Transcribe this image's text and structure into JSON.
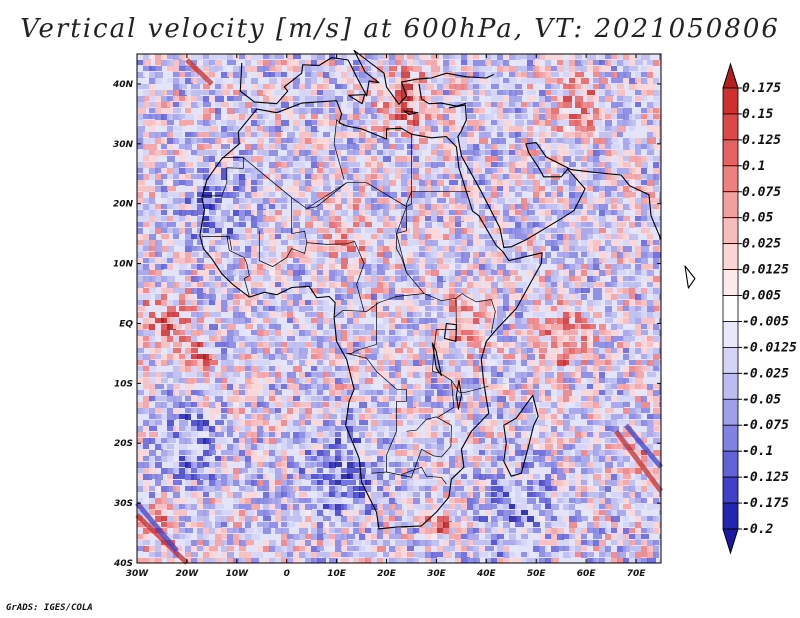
{
  "title": "Vertical velocity [m/s] at 600hPa, VT: 2021050806",
  "footer": "GrADS: IGES/COLA",
  "map": {
    "lon_range": [
      -30,
      75
    ],
    "lat_range": [
      -40,
      45
    ],
    "lon_ticks": [
      {
        "value": -30,
        "label": "30W"
      },
      {
        "value": -20,
        "label": "20W"
      },
      {
        "value": -10,
        "label": "10W"
      },
      {
        "value": 0,
        "label": "0"
      },
      {
        "value": 10,
        "label": "10E"
      },
      {
        "value": 20,
        "label": "20E"
      },
      {
        "value": 30,
        "label": "30E"
      },
      {
        "value": 40,
        "label": "40E"
      },
      {
        "value": 50,
        "label": "50E"
      },
      {
        "value": 60,
        "label": "60E"
      },
      {
        "value": 70,
        "label": "70E"
      }
    ],
    "lat_ticks": [
      {
        "value": 40,
        "label": "40N"
      },
      {
        "value": 30,
        "label": "30N"
      },
      {
        "value": 20,
        "label": "20N"
      },
      {
        "value": 10,
        "label": "10N"
      },
      {
        "value": 0,
        "label": "EQ"
      },
      {
        "value": -10,
        "label": "10S"
      },
      {
        "value": -20,
        "label": "20S"
      },
      {
        "value": -30,
        "label": "30S"
      },
      {
        "value": -40,
        "label": "40S"
      }
    ]
  },
  "colorbar": {
    "levels": [
      "0.175",
      "0.15",
      "0.125",
      "0.1",
      "0.075",
      "0.05",
      "0.025",
      "0.0125",
      "0.005",
      "-0.005",
      "-0.0125",
      "-0.025",
      "-0.05",
      "-0.075",
      "-0.1",
      "-0.125",
      "-0.175",
      "-0.2"
    ],
    "colors": [
      "#b51e1e",
      "#cf2f2f",
      "#dc4848",
      "#e66262",
      "#ee8080",
      "#f4a0a0",
      "#f8bcbc",
      "#fbd6d6",
      "#fdeaea",
      "#ffffff",
      "#e8e8fb",
      "#d4d4f6",
      "#bcbcf0",
      "#a0a0ea",
      "#8282e2",
      "#6262d8",
      "#4040c8",
      "#2424b4",
      "#1a1aa0"
    ]
  },
  "colors": {
    "positive": "#d23c3c",
    "negative": "#5a5ad8",
    "land_outline": "#000000"
  }
}
